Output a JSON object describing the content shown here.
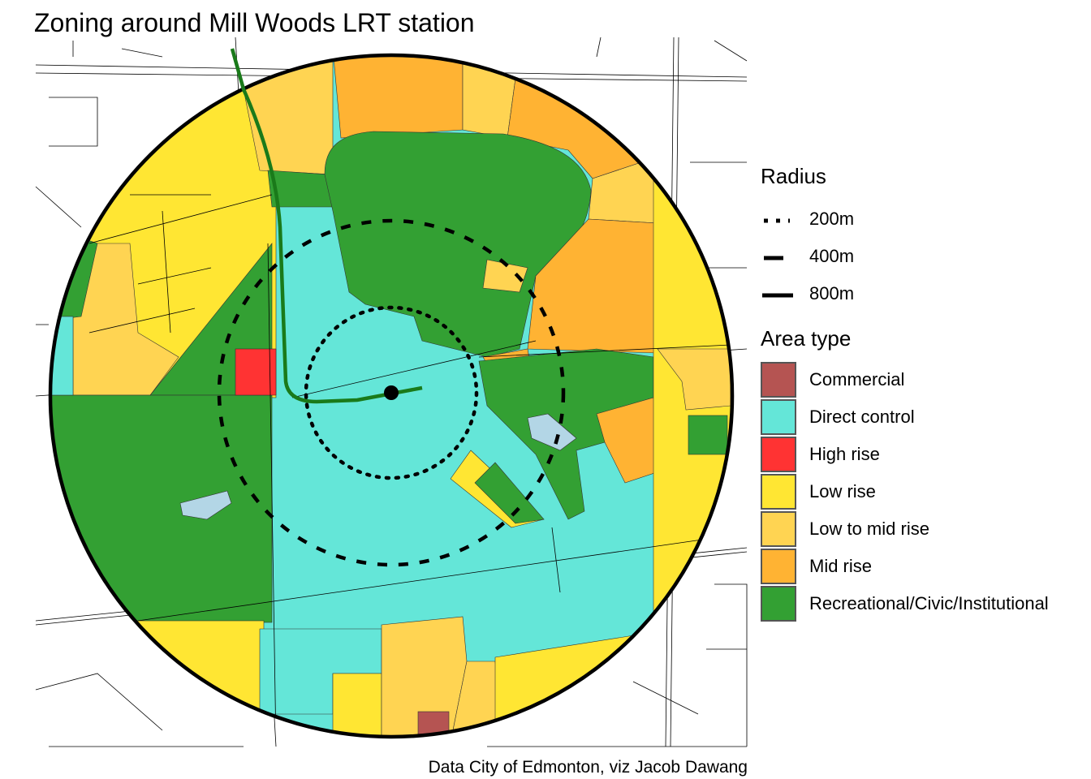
{
  "title": "Zoning around Mill Woods LRT station",
  "caption": "Data City of Edmonton, viz Jacob Dawang",
  "legend": {
    "radius": {
      "title": "Radius",
      "items": [
        {
          "label": "200m",
          "style": "dotted"
        },
        {
          "label": "400m",
          "style": "dashed"
        },
        {
          "label": "800m",
          "style": "solid"
        }
      ]
    },
    "area_type": {
      "title": "Area type",
      "items": [
        {
          "label": "Commercial",
          "color": "#b55452"
        },
        {
          "label": "Direct control",
          "color": "#64e6d8"
        },
        {
          "label": "High rise",
          "color": "#ff3333"
        },
        {
          "label": "Low rise",
          "color": "#ffe633"
        },
        {
          "label": "Low to mid rise",
          "color": "#ffd452"
        },
        {
          "label": "Mid rise",
          "color": "#ffb333"
        },
        {
          "label": "Recreational/Civic/Institutional",
          "color": "#33a033"
        }
      ]
    }
  },
  "map_colors": {
    "water": "#b3d6e6",
    "lrt_line": "#1a7a1a",
    "streets": "#000000"
  }
}
